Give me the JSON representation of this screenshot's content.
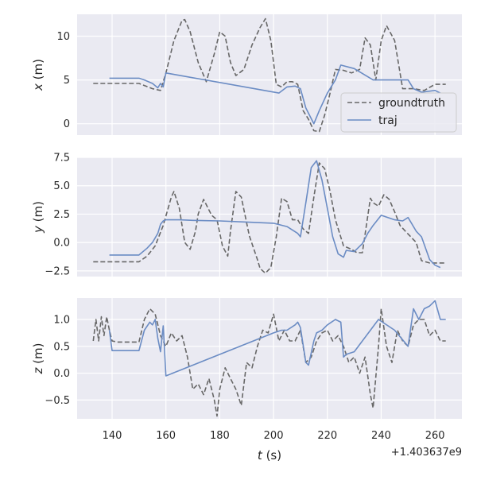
{
  "chart_data": [
    {
      "type": "line",
      "ylabel": "x (m)",
      "ylabel_var": "x",
      "ylabel_unit": " (m)",
      "ylim": [
        -1.3,
        12.5
      ],
      "yticks": [
        0,
        5,
        10
      ],
      "ytick_labels": [
        "0",
        "5",
        "10"
      ],
      "grid": true,
      "legend": {
        "placement": "lower-right",
        "entries": [
          {
            "label": "groundtruth",
            "style": "dashed",
            "color": "#676767"
          },
          {
            "label": "traj",
            "style": "solid",
            "color": "#6b8cc4"
          }
        ]
      },
      "series": [
        {
          "name": "groundtruth",
          "style": "dashed",
          "color": "#676767",
          "x": [
            133,
            150,
            155,
            158,
            160,
            163,
            166,
            167,
            169,
            172,
            175,
            178,
            180,
            182,
            184,
            186,
            189,
            192,
            195,
            197,
            199,
            201,
            203,
            205,
            207,
            209,
            211,
            213,
            215,
            217,
            219,
            221,
            223,
            226,
            229,
            232,
            234,
            236,
            238,
            240,
            242,
            245,
            248,
            252,
            256,
            260,
            264
          ],
          "y": [
            4.6,
            4.6,
            4.0,
            3.8,
            5.8,
            9.5,
            11.8,
            11.9,
            10.5,
            7.0,
            4.8,
            8.0,
            10.5,
            10.0,
            7.0,
            5.5,
            6.2,
            9.0,
            11.0,
            12.0,
            9.5,
            4.5,
            4.2,
            4.8,
            4.8,
            4.5,
            1.5,
            0.5,
            -0.8,
            -0.9,
            1.0,
            3.5,
            6.2,
            6.1,
            5.8,
            6.2,
            9.8,
            9.0,
            5.0,
            9.5,
            11.2,
            9.5,
            4.0,
            4.0,
            3.8,
            4.5,
            4.5
          ]
        },
        {
          "name": "traj",
          "style": "solid",
          "color": "#6b8cc4",
          "x": [
            139,
            140,
            150,
            152,
            155,
            157,
            158,
            159,
            160,
            202,
            205,
            208,
            210,
            212,
            215,
            217,
            220,
            223,
            225,
            230,
            237,
            250,
            252,
            255,
            260,
            262
          ],
          "y": [
            5.2,
            5.2,
            5.2,
            5.0,
            4.6,
            4.1,
            4.6,
            4.2,
            5.8,
            3.5,
            4.2,
            4.3,
            4.0,
            1.8,
            0.0,
            1.5,
            3.5,
            5.0,
            6.7,
            6.3,
            5.0,
            5.0,
            4.0,
            3.6,
            3.8,
            3.5
          ]
        }
      ]
    },
    {
      "type": "line",
      "ylabel": "y (m)",
      "ylabel_var": "y",
      "ylabel_unit": " (m)",
      "ylim": [
        -3.0,
        7.5
      ],
      "yticks": [
        -2.5,
        0.0,
        2.5,
        5.0,
        7.5
      ],
      "ytick_labels": [
        "−2.5",
        "0.0",
        "2.5",
        "5.0",
        "7.5"
      ],
      "grid": true,
      "series": [
        {
          "name": "groundtruth",
          "style": "dashed",
          "color": "#676767",
          "x": [
            133,
            150,
            153,
            156,
            159,
            162,
            163,
            165,
            167,
            169,
            171,
            172,
            174,
            177,
            179,
            181,
            183,
            184,
            186,
            188,
            191,
            194,
            195,
            197,
            199,
            201,
            203,
            205,
            207,
            209,
            211,
            213,
            215,
            217,
            219,
            221,
            223,
            226,
            229,
            231,
            233,
            236,
            237,
            239,
            241,
            243,
            245,
            247,
            249,
            251,
            253,
            255,
            258,
            261,
            264
          ],
          "y": [
            -1.7,
            -1.7,
            -1.2,
            -0.3,
            1.5,
            4.0,
            4.5,
            3.0,
            0.0,
            -0.6,
            1.0,
            2.5,
            3.8,
            2.4,
            2.0,
            -0.3,
            -1.2,
            1.0,
            4.5,
            4.0,
            0.6,
            -1.5,
            -2.3,
            -2.7,
            -2.2,
            0.5,
            3.9,
            3.6,
            2.0,
            2.0,
            1.2,
            0.8,
            4.0,
            7.0,
            6.5,
            4.5,
            2.0,
            -0.3,
            -0.6,
            -0.9,
            -0.9,
            3.9,
            3.5,
            3.2,
            4.2,
            3.8,
            2.7,
            1.5,
            1.0,
            0.5,
            0.0,
            -1.6,
            -1.8,
            -1.8,
            -1.8
          ]
        },
        {
          "name": "traj",
          "style": "solid",
          "color": "#6b8cc4",
          "x": [
            139,
            140,
            150,
            153,
            155,
            157,
            158,
            159,
            160,
            165,
            170,
            180,
            190,
            200,
            205,
            209,
            210,
            212,
            214,
            216,
            218,
            220,
            222,
            224,
            226,
            227,
            230,
            233,
            235,
            237,
            240,
            245,
            248,
            250,
            253,
            255,
            258,
            260,
            262
          ],
          "y": [
            -1.1,
            -1.1,
            -1.1,
            -0.5,
            0.0,
            0.8,
            1.6,
            1.9,
            2.0,
            2.0,
            1.95,
            1.9,
            1.8,
            1.7,
            1.4,
            0.8,
            0.5,
            3.5,
            6.6,
            7.2,
            5.5,
            3.0,
            0.5,
            -1.0,
            -1.3,
            -0.7,
            -0.8,
            -0.1,
            0.8,
            1.5,
            2.4,
            2.0,
            1.9,
            2.2,
            1.0,
            0.5,
            -1.5,
            -2.0,
            -2.2
          ]
        }
      ]
    },
    {
      "type": "line",
      "ylabel": "z (m)",
      "ylabel_var": "z",
      "ylabel_unit": " (m)",
      "ylim": [
        -0.85,
        1.4
      ],
      "yticks": [
        -0.5,
        0.0,
        0.5,
        1.0
      ],
      "ytick_labels": [
        "−0.5",
        "0.0",
        "0.5",
        "1.0"
      ],
      "grid": true,
      "series": [
        {
          "name": "groundtruth",
          "style": "dashed",
          "color": "#676767",
          "x": [
            133,
            134,
            135,
            136,
            137,
            138,
            139,
            140,
            142,
            150,
            152,
            153,
            154,
            156,
            158,
            160,
            162,
            164,
            166,
            168,
            170,
            172,
            174,
            176,
            178,
            179,
            180,
            182,
            184,
            186,
            188,
            190,
            192,
            194,
            196,
            198,
            200,
            202,
            204,
            206,
            208,
            210,
            212,
            214,
            216,
            218,
            220,
            222,
            224,
            226,
            228,
            230,
            232,
            234,
            236,
            237,
            239,
            240,
            242,
            244,
            246,
            248,
            250,
            252,
            254,
            256,
            258,
            260,
            262,
            264
          ],
          "y": [
            0.6,
            1.0,
            0.6,
            1.05,
            0.7,
            1.05,
            0.8,
            0.6,
            0.58,
            0.58,
            1.0,
            1.1,
            1.2,
            1.1,
            0.7,
            0.5,
            0.75,
            0.6,
            0.7,
            0.3,
            -0.3,
            -0.2,
            -0.4,
            -0.1,
            -0.5,
            -0.8,
            -0.3,
            0.1,
            -0.1,
            -0.3,
            -0.6,
            0.2,
            0.1,
            0.5,
            0.8,
            0.75,
            1.1,
            0.6,
            0.8,
            0.6,
            0.6,
            0.8,
            0.2,
            0.3,
            0.6,
            0.75,
            0.8,
            0.6,
            0.7,
            0.5,
            0.2,
            0.3,
            0.0,
            0.3,
            -0.4,
            -0.65,
            0.5,
            1.2,
            0.5,
            0.2,
            0.8,
            0.6,
            0.5,
            0.9,
            1.0,
            1.0,
            0.7,
            0.8,
            0.6,
            0.6
          ]
        },
        {
          "name": "traj",
          "style": "solid",
          "color": "#6b8cc4",
          "x": [
            139,
            140,
            150,
            152,
            154,
            155,
            156,
            157,
            158,
            159,
            160,
            200,
            203,
            205,
            208,
            209,
            210,
            212,
            213,
            215,
            216,
            218,
            220,
            223,
            225,
            226,
            227,
            230,
            239,
            245,
            250,
            252,
            254,
            256,
            258,
            260,
            262,
            264
          ],
          "y": [
            0.8,
            0.42,
            0.42,
            0.8,
            0.95,
            0.9,
            1.0,
            0.65,
            0.4,
            0.88,
            -0.05,
            0.75,
            0.8,
            0.8,
            0.9,
            0.95,
            0.85,
            0.2,
            0.15,
            0.6,
            0.75,
            0.8,
            0.9,
            1.0,
            0.95,
            0.3,
            0.35,
            0.4,
            1.0,
            0.8,
            0.5,
            1.2,
            1.0,
            1.2,
            1.25,
            1.35,
            1.0,
            1.0
          ]
        }
      ]
    }
  ],
  "xaxis": {
    "xlim": [
      127,
      270
    ],
    "xticks": [
      140,
      160,
      180,
      200,
      220,
      240,
      260
    ],
    "xtick_labels": [
      "140",
      "160",
      "180",
      "200",
      "220",
      "240",
      "260"
    ],
    "xlabel": "t (s)",
    "xlabel_var": "t",
    "xlabel_unit": " (s)",
    "offset_label": "+1.403637e9"
  }
}
